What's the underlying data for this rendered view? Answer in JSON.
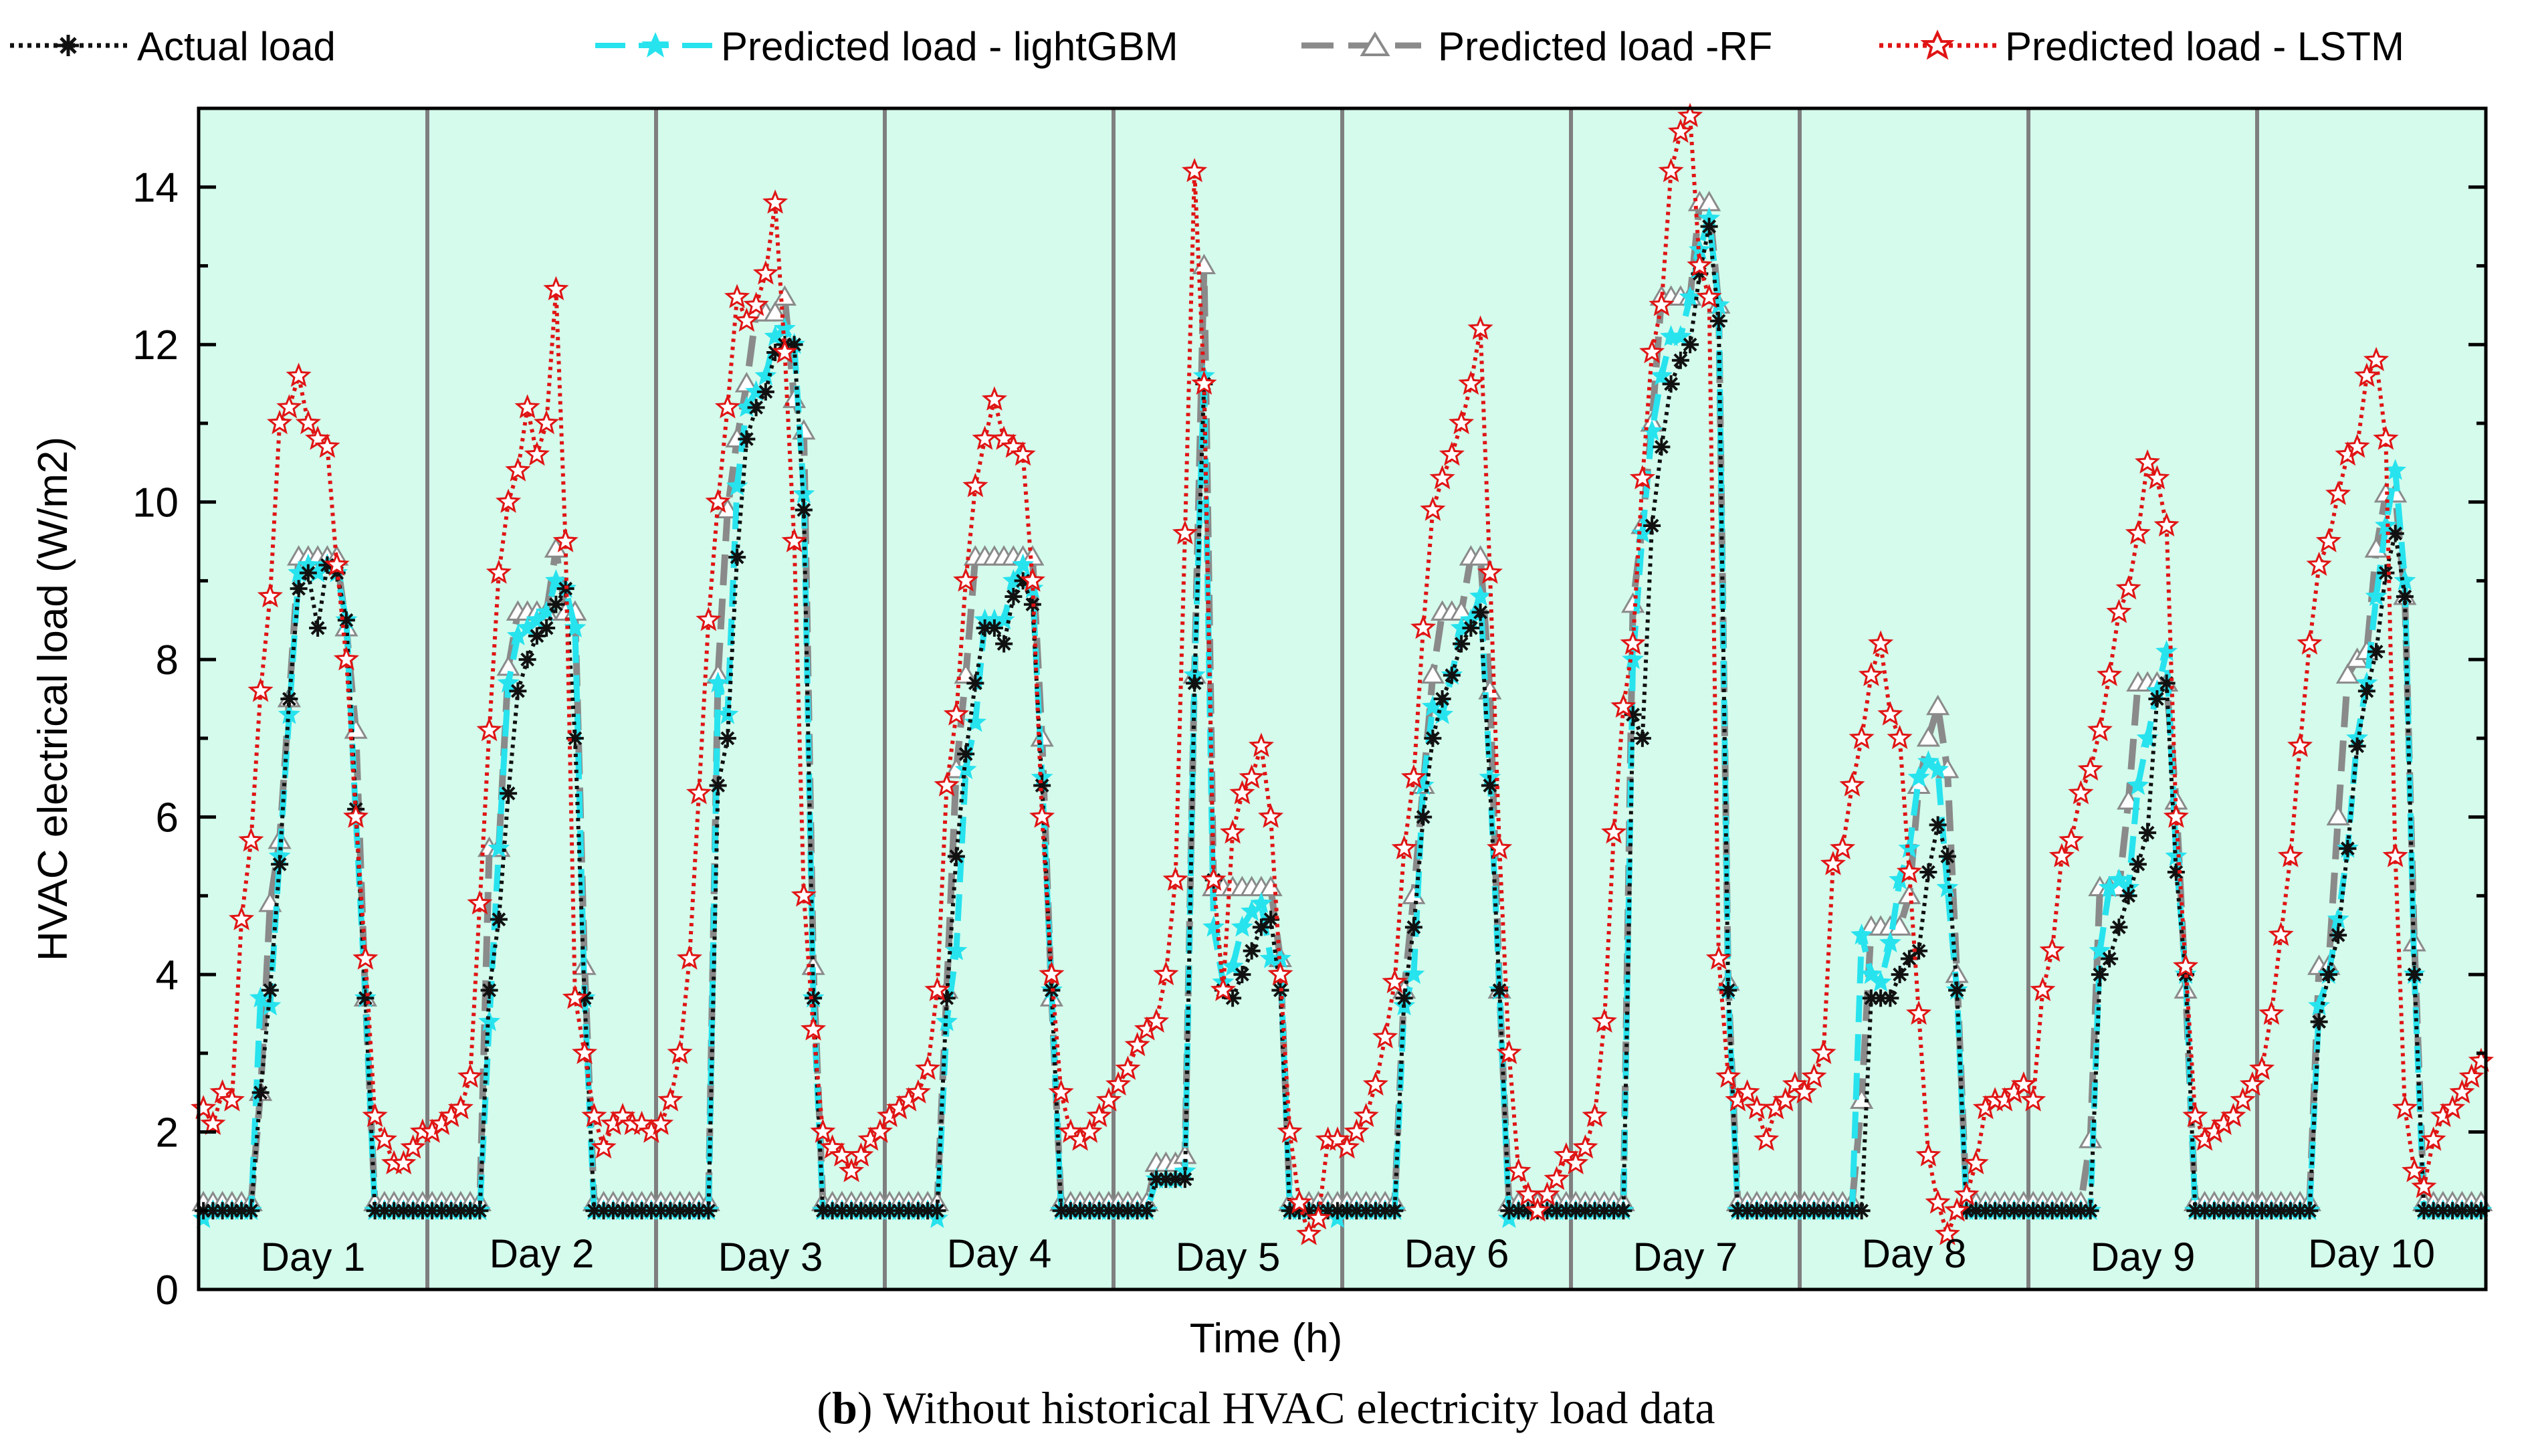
{
  "chart_data": {
    "type": "line",
    "xlabel": "Time (h)",
    "ylabel": "HVAC electrical load (W/m2)",
    "ylim": [
      0,
      15
    ],
    "yticks": [
      "0",
      "2",
      "4",
      "6",
      "8",
      "10",
      "12",
      "14"
    ],
    "grid": false,
    "legend_position": "top",
    "caption_prefix": "(",
    "caption_letter": "b",
    "caption_rest": ") Without historical HVAC electricity load data",
    "day_labels": [
      "Day 1",
      "Day 2",
      "Day 3",
      "Day 4",
      "Day 5",
      "Day 6",
      "Day 7",
      "Day 8",
      "Day 9",
      "Day 10"
    ],
    "hours_per_day": 24,
    "series": [
      {
        "name": "Actual load",
        "color": "#111111",
        "marker": "asterisk",
        "values": [
          1,
          1,
          1,
          1,
          1,
          1,
          2.5,
          3.8,
          5.4,
          7.5,
          8.9,
          9.1,
          8.4,
          9.2,
          9.1,
          8.5,
          6.1,
          3.7,
          1,
          1,
          1,
          1,
          1,
          1,
          1,
          1,
          1,
          1,
          1,
          1,
          3.8,
          4.7,
          6.3,
          7.6,
          8.0,
          8.3,
          8.4,
          8.7,
          8.9,
          7.0,
          3.7,
          1,
          1,
          1,
          1,
          1,
          1,
          1,
          1,
          1,
          1,
          1,
          1,
          1,
          6.4,
          7.0,
          9.3,
          10.8,
          11.2,
          11.4,
          11.9,
          12.0,
          12.0,
          9.9,
          3.7,
          1,
          1,
          1,
          1,
          1,
          1,
          1,
          1,
          1,
          1,
          1,
          1,
          1,
          3.7,
          5.5,
          6.8,
          7.7,
          8.4,
          8.4,
          8.2,
          8.8,
          9.0,
          8.7,
          6.4,
          3.8,
          1,
          1,
          1,
          1,
          1,
          1,
          1,
          1,
          1,
          1,
          1.4,
          1.4,
          1.4,
          1.4,
          7.7,
          11.5,
          5.2,
          3.8,
          3.7,
          4.0,
          4.3,
          4.6,
          4.7,
          3.8,
          1,
          1,
          1,
          1,
          1,
          1,
          1,
          1,
          1,
          1,
          1,
          1,
          3.7,
          4.6,
          6.0,
          7.0,
          7.5,
          7.8,
          8.2,
          8.4,
          8.6,
          6.4,
          3.8,
          1,
          1,
          1,
          1,
          1,
          1,
          1,
          1,
          1,
          1,
          1,
          1,
          1,
          7.3,
          7.0,
          9.7,
          10.7,
          11.5,
          11.8,
          12.0,
          12.9,
          13.5,
          12.3,
          3.8,
          1,
          1,
          1,
          1,
          1,
          1,
          1,
          1,
          1,
          1,
          1,
          1,
          1,
          1.0,
          3.7,
          3.7,
          3.7,
          4.0,
          4.2,
          4.3,
          5.3,
          5.9,
          5.5,
          3.8,
          1,
          1,
          1,
          1,
          1,
          1,
          1,
          1,
          1,
          1,
          1,
          1,
          1,
          1,
          4.0,
          4.2,
          4.6,
          5.0,
          5.4,
          5.8,
          7.5,
          7.7,
          5.3,
          4.0,
          1,
          1,
          1,
          1,
          1,
          1,
          1,
          1,
          1,
          1,
          1,
          1,
          1,
          3.4,
          4.0,
          4.5,
          5.6,
          6.9,
          7.6,
          8.1,
          9.1,
          9.6,
          8.8,
          4.0,
          1,
          1,
          1,
          1,
          1,
          1,
          1
        ]
      },
      {
        "name": "Predicted load - lightGBM",
        "color": "#27e3ee",
        "marker": "star",
        "values": [
          0.9,
          1,
          1,
          1,
          1,
          1,
          3.7,
          3.6,
          5.5,
          7.3,
          9.1,
          9.2,
          9.1,
          9.2,
          9.1,
          8.5,
          6.0,
          3.7,
          1,
          1,
          1,
          1,
          1,
          1,
          1,
          1,
          1,
          1,
          1,
          1,
          3.4,
          5.6,
          7.7,
          8.3,
          8.4,
          8.5,
          8.6,
          9.0,
          8.9,
          8.4,
          3.7,
          1,
          1,
          1,
          1,
          1,
          1,
          1,
          1,
          1,
          1,
          1,
          1,
          1,
          7.7,
          7.3,
          10.2,
          11.2,
          11.4,
          11.6,
          12.1,
          12.2,
          12.0,
          10.1,
          3.7,
          1,
          1,
          1,
          1,
          1,
          1,
          1,
          1,
          1,
          1,
          1,
          1,
          0.9,
          3.4,
          4.3,
          6.6,
          7.2,
          8.5,
          8.5,
          8.5,
          9.0,
          9.2,
          8.9,
          6.5,
          3.8,
          1,
          1,
          1,
          1,
          1,
          1,
          1,
          1,
          1,
          1,
          1.4,
          1.4,
          1.4,
          1.5,
          7.8,
          11.6,
          4.6,
          3.9,
          4.1,
          4.6,
          4.8,
          4.9,
          4.2,
          4.2,
          1,
          1,
          1,
          1,
          1,
          0.9,
          1,
          1,
          1,
          1,
          1,
          1,
          3.6,
          4.0,
          6.4,
          7.4,
          7.3,
          7.8,
          8.4,
          8.5,
          8.8,
          6.5,
          3.8,
          0.9,
          1,
          1,
          1,
          1,
          1,
          1,
          1,
          1,
          1,
          1,
          1,
          1,
          8.0,
          9.6,
          10.9,
          11.6,
          12.1,
          12.1,
          12.6,
          13.2,
          13.6,
          12.5,
          3.8,
          1,
          1,
          1,
          1,
          1,
          1,
          1,
          1,
          1,
          1,
          1,
          1,
          1,
          4.5,
          4.0,
          3.9,
          4.4,
          5.2,
          5.6,
          6.5,
          6.7,
          6.6,
          5.1,
          3.8,
          1,
          1,
          1,
          1,
          1,
          1,
          1,
          1,
          1,
          1,
          1,
          1,
          1,
          1,
          4.3,
          5.1,
          5.2,
          5.1,
          6.4,
          7.0,
          7.6,
          8.1,
          5.5,
          4.0,
          1,
          1,
          1,
          1,
          1,
          1,
          1,
          1,
          1,
          1,
          1,
          1,
          1,
          3.6,
          4.0,
          4.7,
          5.6,
          7.0,
          7.7,
          8.8,
          9.7,
          10.4,
          9.0,
          4.0,
          1,
          1,
          1,
          1,
          1,
          1,
          1
        ]
      },
      {
        "name": "Predicted load -RF",
        "color": "#8a8a8a",
        "marker": "triangle",
        "values": [
          1.1,
          1.1,
          1.1,
          1.1,
          1.1,
          1.1,
          2.5,
          4.9,
          5.7,
          7.5,
          9.3,
          9.3,
          9.3,
          9.3,
          9.3,
          8.4,
          7.1,
          3.7,
          1.1,
          1.1,
          1.1,
          1.1,
          1.1,
          1.1,
          1.1,
          1.1,
          1.1,
          1.1,
          1.1,
          1.1,
          5.6,
          5.6,
          7.9,
          8.6,
          8.6,
          8.6,
          8.6,
          9.4,
          8.6,
          8.6,
          4.1,
          1.1,
          1.1,
          1.1,
          1.1,
          1.1,
          1.1,
          1.1,
          1.1,
          1.1,
          1.1,
          1.1,
          1.1,
          1.1,
          7.8,
          9.9,
          10.8,
          11.5,
          12.4,
          12.4,
          12.4,
          12.6,
          11.3,
          10.9,
          4.1,
          1.1,
          1.1,
          1.1,
          1.1,
          1.1,
          1.1,
          1.1,
          1.1,
          1.1,
          1.1,
          1.1,
          1.1,
          1.1,
          3.8,
          6.6,
          7.8,
          9.3,
          9.3,
          9.3,
          9.3,
          9.3,
          9.3,
          9.3,
          7.0,
          3.7,
          1.1,
          1.1,
          1.1,
          1.1,
          1.1,
          1.1,
          1.1,
          1.1,
          1.1,
          1.1,
          1.6,
          1.6,
          1.6,
          1.7,
          7.8,
          13.0,
          5.1,
          5.1,
          5.1,
          5.1,
          5.1,
          5.1,
          5.1,
          4.2,
          1.1,
          1.1,
          1.1,
          1.1,
          1.1,
          1.1,
          1.1,
          1.1,
          1.1,
          1.1,
          1.1,
          1.1,
          3.8,
          5.0,
          6.4,
          7.8,
          8.6,
          8.6,
          8.6,
          9.3,
          9.3,
          7.6,
          3.8,
          1.1,
          1.1,
          1.1,
          1.1,
          1.1,
          1.1,
          1.1,
          1.1,
          1.1,
          1.1,
          1.1,
          1.1,
          1.1,
          8.7,
          9.7,
          11.0,
          12.6,
          12.6,
          12.6,
          12.6,
          13.8,
          13.8,
          12.5,
          3.9,
          1.1,
          1.1,
          1.1,
          1.1,
          1.1,
          1.1,
          1.1,
          1.1,
          1.1,
          1.1,
          1.1,
          1.1,
          1.1,
          2.4,
          4.6,
          4.6,
          4.6,
          4.6,
          5.0,
          6.4,
          7.0,
          7.4,
          6.6,
          4.0,
          1.1,
          1.1,
          1.1,
          1.1,
          1.1,
          1.1,
          1.1,
          1.1,
          1.1,
          1.1,
          1.1,
          1.1,
          1.1,
          1.9,
          5.1,
          5.1,
          5.1,
          6.2,
          7.7,
          7.7,
          7.7,
          7.7,
          6.2,
          3.8,
          1.1,
          1.1,
          1.1,
          1.1,
          1.1,
          1.1,
          1.1,
          1.1,
          1.1,
          1.1,
          1.1,
          1.1,
          1.1,
          4.1,
          4.1,
          6.0,
          7.8,
          8.0,
          8.1,
          9.4,
          10.1,
          10.1,
          8.8,
          4.4,
          1.1,
          1.1,
          1.1,
          1.1,
          1.1,
          1.1,
          1.1
        ]
      },
      {
        "name": "Predicted load - LSTM",
        "color": "#e01414",
        "marker": "star-open",
        "values": [
          2.3,
          2.1,
          2.5,
          2.4,
          4.7,
          5.7,
          7.6,
          8.8,
          11.0,
          11.2,
          11.6,
          11.0,
          10.8,
          10.7,
          9.2,
          8.0,
          6.0,
          4.2,
          2.2,
          1.9,
          1.6,
          1.6,
          1.8,
          2.0,
          2.0,
          2.1,
          2.2,
          2.3,
          2.7,
          4.9,
          7.1,
          9.1,
          10.0,
          10.4,
          11.2,
          10.6,
          11.0,
          12.7,
          9.5,
          3.7,
          3.0,
          2.2,
          1.8,
          2.1,
          2.2,
          2.1,
          2.1,
          2.0,
          2.1,
          2.4,
          3.0,
          4.2,
          6.3,
          8.5,
          10.0,
          11.2,
          12.6,
          12.3,
          12.5,
          12.9,
          13.8,
          11.9,
          9.5,
          5.0,
          3.3,
          2.0,
          1.8,
          1.7,
          1.5,
          1.7,
          1.9,
          2.0,
          2.2,
          2.3,
          2.4,
          2.5,
          2.8,
          3.8,
          6.4,
          7.3,
          9.0,
          10.2,
          10.8,
          11.3,
          10.8,
          10.7,
          10.6,
          9.0,
          6.0,
          4.0,
          2.5,
          2.0,
          1.9,
          2.0,
          2.2,
          2.4,
          2.6,
          2.8,
          3.1,
          3.3,
          3.4,
          4.0,
          5.2,
          9.6,
          14.2,
          11.5,
          5.2,
          3.8,
          5.8,
          6.3,
          6.5,
          6.9,
          6.0,
          4.0,
          2.0,
          1.1,
          0.7,
          0.9,
          1.9,
          1.9,
          1.8,
          2.0,
          2.2,
          2.6,
          3.2,
          3.9,
          5.6,
          6.5,
          8.4,
          9.9,
          10.3,
          10.6,
          11.0,
          11.5,
          12.2,
          9.1,
          5.6,
          3.0,
          1.5,
          1.2,
          1.0,
          1.2,
          1.4,
          1.7,
          1.6,
          1.8,
          2.2,
          3.4,
          5.8,
          7.4,
          8.2,
          10.3,
          11.9,
          12.5,
          14.2,
          14.7,
          14.9,
          13.0,
          12.6,
          4.2,
          2.7,
          2.4,
          2.5,
          2.3,
          1.9,
          2.3,
          2.4,
          2.6,
          2.5,
          2.7,
          3.0,
          5.4,
          5.6,
          6.4,
          7.0,
          7.8,
          8.2,
          7.3,
          7.0,
          5.3,
          3.5,
          1.7,
          1.1,
          0.7,
          1.0,
          1.2,
          1.6,
          2.3,
          2.4,
          2.4,
          2.5,
          2.6,
          2.4,
          3.8,
          4.3,
          5.5,
          5.7,
          6.3,
          6.6,
          7.1,
          7.8,
          8.6,
          8.9,
          9.6,
          10.5,
          10.3,
          9.7,
          6.0,
          4.1,
          2.2,
          1.9,
          2.0,
          2.1,
          2.2,
          2.4,
          2.6,
          2.8,
          3.5,
          4.5,
          5.5,
          6.9,
          8.2,
          9.2,
          9.5,
          10.1,
          10.6,
          10.7,
          11.6,
          11.8,
          10.8,
          5.5,
          2.3,
          1.5,
          1.3,
          1.9,
          2.2,
          2.3,
          2.5,
          2.7,
          2.9
        ]
      }
    ]
  }
}
